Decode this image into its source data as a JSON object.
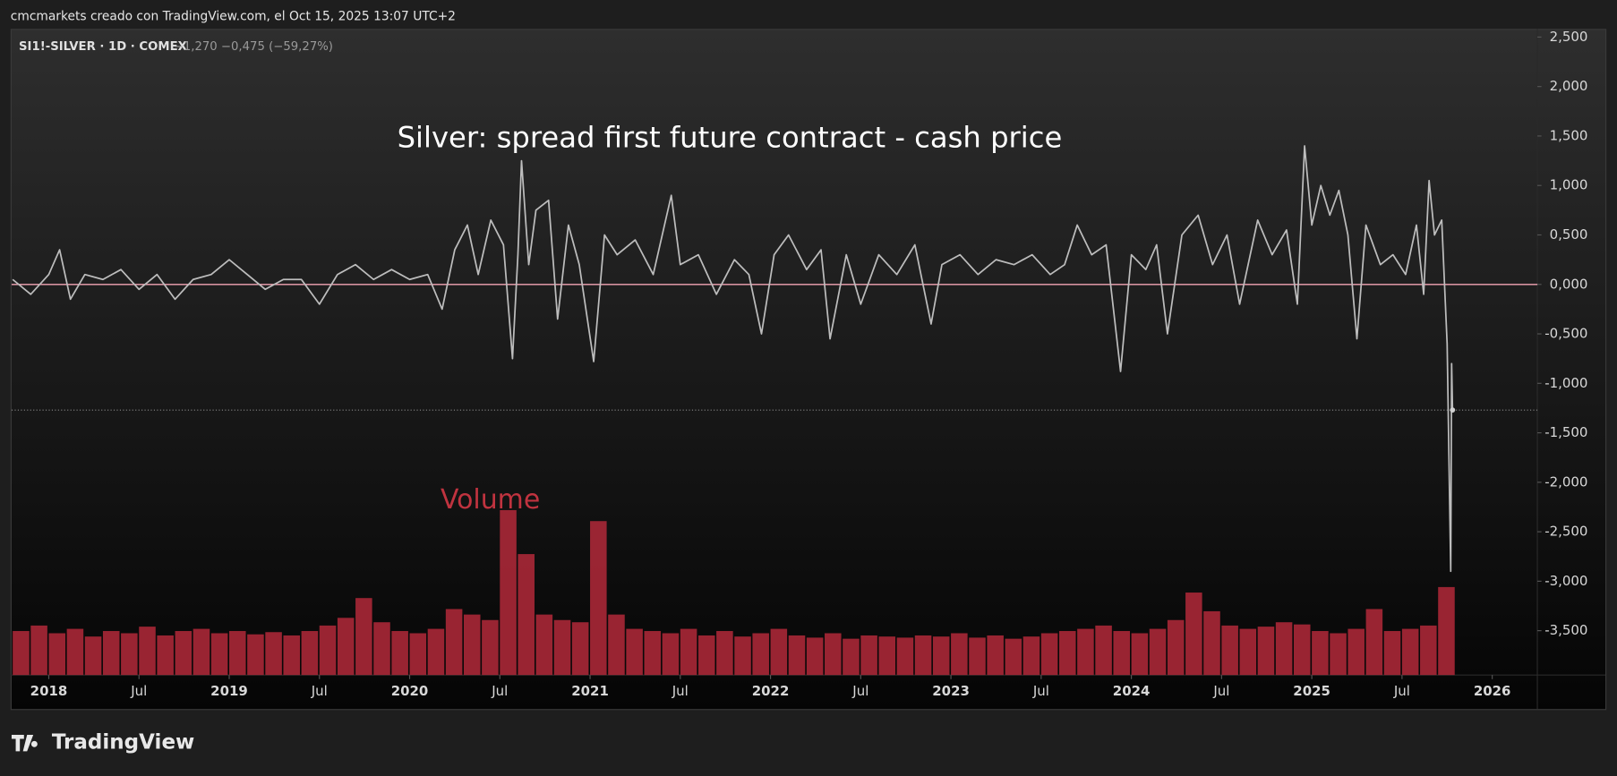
{
  "attribution": "cmcmarkets creado con TradingView.com, el Oct 15, 2025 13:07 UTC+2",
  "brand": "TradingView",
  "chart_data": {
    "type": "line",
    "symbol": "SI1!-SILVER · 1D · COMEX",
    "quote": "−1,270  −0,475 (−59,27%)",
    "title": "Silver: spread first future contract - cash price",
    "annotations": [
      "Volume"
    ],
    "xlim": [
      2017.794,
      2026.25
    ],
    "ylim": [
      -3.948,
      2.583
    ],
    "xticks": [
      2018,
      {
        "value": 2018.5,
        "label": "Jul"
      },
      2019,
      {
        "value": 2019.5,
        "label": "Jul"
      },
      2020,
      {
        "value": 2020.5,
        "label": "Jul"
      },
      2021,
      {
        "value": 2021.5,
        "label": "Jul"
      },
      2022,
      {
        "value": 2022.5,
        "label": "Jul"
      },
      2023,
      {
        "value": 2023.5,
        "label": "Jul"
      },
      2024,
      {
        "value": 2024.5,
        "label": "Jul"
      },
      2025,
      {
        "value": 2025.5,
        "label": "Jul"
      },
      2026
    ],
    "yticks": [
      {
        "value": 2.5,
        "label": "2,500"
      },
      {
        "value": 2,
        "label": "2,000"
      },
      {
        "value": 1.5,
        "label": "1,500"
      },
      {
        "value": 1,
        "label": "1,000"
      },
      {
        "value": 0.5,
        "label": "0,500"
      },
      {
        "value": 0,
        "label": "0,000"
      },
      {
        "value": -0.5,
        "label": "-0,500"
      },
      {
        "value": -1,
        "label": "-1,000"
      },
      {
        "value": -1.5,
        "label": "-1,500"
      },
      {
        "value": -2,
        "label": "-2,000"
      },
      {
        "value": -2.5,
        "label": "-2,500"
      },
      {
        "value": -3,
        "label": "-3,000"
      },
      {
        "value": -3.5,
        "label": "-3,500"
      }
    ],
    "grid": false,
    "reference_line": {
      "value": 0,
      "color": "#f4a6b6"
    },
    "x": [
      2017.8,
      2017.9,
      2018.0,
      2018.06,
      2018.12,
      2018.2,
      2018.3,
      2018.4,
      2018.5,
      2018.6,
      2018.7,
      2018.8,
      2018.9,
      2019.0,
      2019.1,
      2019.2,
      2019.3,
      2019.4,
      2019.5,
      2019.6,
      2019.7,
      2019.8,
      2019.9,
      2020.0,
      2020.1,
      2020.18,
      2020.25,
      2020.32,
      2020.38,
      2020.45,
      2020.52,
      2020.57,
      2020.6,
      2020.62,
      2020.66,
      2020.7,
      2020.77,
      2020.82,
      2020.88,
      2020.94,
      2021.02,
      2021.08,
      2021.15,
      2021.25,
      2021.35,
      2021.45,
      2021.5,
      2021.6,
      2021.7,
      2021.8,
      2021.88,
      2021.95,
      2022.02,
      2022.1,
      2022.2,
      2022.28,
      2022.33,
      2022.42,
      2022.5,
      2022.6,
      2022.7,
      2022.8,
      2022.89,
      2022.95,
      2023.05,
      2023.15,
      2023.25,
      2023.35,
      2023.45,
      2023.55,
      2023.63,
      2023.7,
      2023.78,
      2023.86,
      2023.94,
      2024.0,
      2024.08,
      2024.14,
      2024.2,
      2024.28,
      2024.37,
      2024.45,
      2024.53,
      2024.6,
      2024.7,
      2024.78,
      2024.86,
      2024.92,
      2024.96,
      2025.0,
      2025.05,
      2025.1,
      2025.15,
      2025.2,
      2025.25,
      2025.3,
      2025.38,
      2025.45,
      2025.52,
      2025.58,
      2025.62,
      2025.65,
      2025.68,
      2025.72,
      2025.75,
      2025.77,
      2025.775,
      2025.78
    ],
    "series": [
      {
        "name": "SI1!-SILVER",
        "color": "#bdbdbd",
        "values": [
          0.05,
          -0.1,
          0.1,
          0.35,
          -0.15,
          0.1,
          0.05,
          0.15,
          -0.05,
          0.1,
          -0.15,
          0.05,
          0.1,
          0.25,
          0.1,
          -0.05,
          0.05,
          0.05,
          -0.2,
          0.1,
          0.2,
          0.05,
          0.15,
          0.05,
          0.1,
          -0.25,
          0.35,
          0.6,
          0.1,
          0.65,
          0.4,
          -0.75,
          0.3,
          1.25,
          0.2,
          0.75,
          0.85,
          -0.35,
          0.6,
          0.2,
          -0.78,
          0.5,
          0.3,
          0.45,
          0.1,
          0.9,
          0.2,
          0.3,
          -0.1,
          0.25,
          0.1,
          -0.5,
          0.3,
          0.5,
          0.15,
          0.35,
          -0.55,
          0.3,
          -0.2,
          0.3,
          0.1,
          0.4,
          -0.4,
          0.2,
          0.3,
          0.1,
          0.25,
          0.2,
          0.3,
          0.1,
          0.2,
          0.6,
          0.3,
          0.4,
          -0.88,
          0.3,
          0.15,
          0.4,
          -0.5,
          0.5,
          0.7,
          0.2,
          0.5,
          -0.2,
          0.65,
          0.3,
          0.55,
          -0.2,
          1.4,
          0.6,
          1.0,
          0.7,
          0.95,
          0.5,
          -0.55,
          0.6,
          0.2,
          0.3,
          0.1,
          0.6,
          -0.1,
          1.05,
          0.5,
          0.65,
          -0.6,
          -2.9,
          -0.8,
          -1.27
        ]
      }
    ],
    "volume": {
      "color": "#b3293a",
      "x": [
        2017.85,
        2017.95,
        2018.05,
        2018.15,
        2018.25,
        2018.35,
        2018.45,
        2018.55,
        2018.65,
        2018.75,
        2018.85,
        2018.95,
        2019.05,
        2019.15,
        2019.25,
        2019.35,
        2019.45,
        2019.55,
        2019.65,
        2019.75,
        2019.85,
        2019.95,
        2020.05,
        2020.15,
        2020.25,
        2020.35,
        2020.45,
        2020.55,
        2020.65,
        2020.75,
        2020.85,
        2020.95,
        2021.05,
        2021.15,
        2021.25,
        2021.35,
        2021.45,
        2021.55,
        2021.65,
        2021.75,
        2021.85,
        2021.95,
        2022.05,
        2022.15,
        2022.25,
        2022.35,
        2022.45,
        2022.55,
        2022.65,
        2022.75,
        2022.85,
        2022.95,
        2023.05,
        2023.15,
        2023.25,
        2023.35,
        2023.45,
        2023.55,
        2023.65,
        2023.75,
        2023.85,
        2023.95,
        2024.05,
        2024.15,
        2024.25,
        2024.35,
        2024.45,
        2024.55,
        2024.65,
        2024.75,
        2024.85,
        2024.95,
        2025.05,
        2025.15,
        2025.25,
        2025.35,
        2025.45,
        2025.55,
        2025.65,
        2025.75
      ],
      "values": [
        40,
        45,
        38,
        42,
        35,
        40,
        38,
        44,
        36,
        40,
        42,
        38,
        40,
        37,
        39,
        36,
        40,
        45,
        52,
        70,
        48,
        40,
        38,
        42,
        60,
        55,
        50,
        150,
        110,
        55,
        50,
        48,
        140,
        55,
        42,
        40,
        38,
        42,
        36,
        40,
        35,
        38,
        42,
        36,
        34,
        38,
        33,
        36,
        35,
        34,
        36,
        35,
        38,
        34,
        36,
        33,
        35,
        38,
        40,
        42,
        45,
        40,
        38,
        42,
        50,
        75,
        58,
        45,
        42,
        44,
        48,
        46,
        40,
        38,
        42,
        60,
        40,
        42,
        45,
        80
      ]
    }
  }
}
